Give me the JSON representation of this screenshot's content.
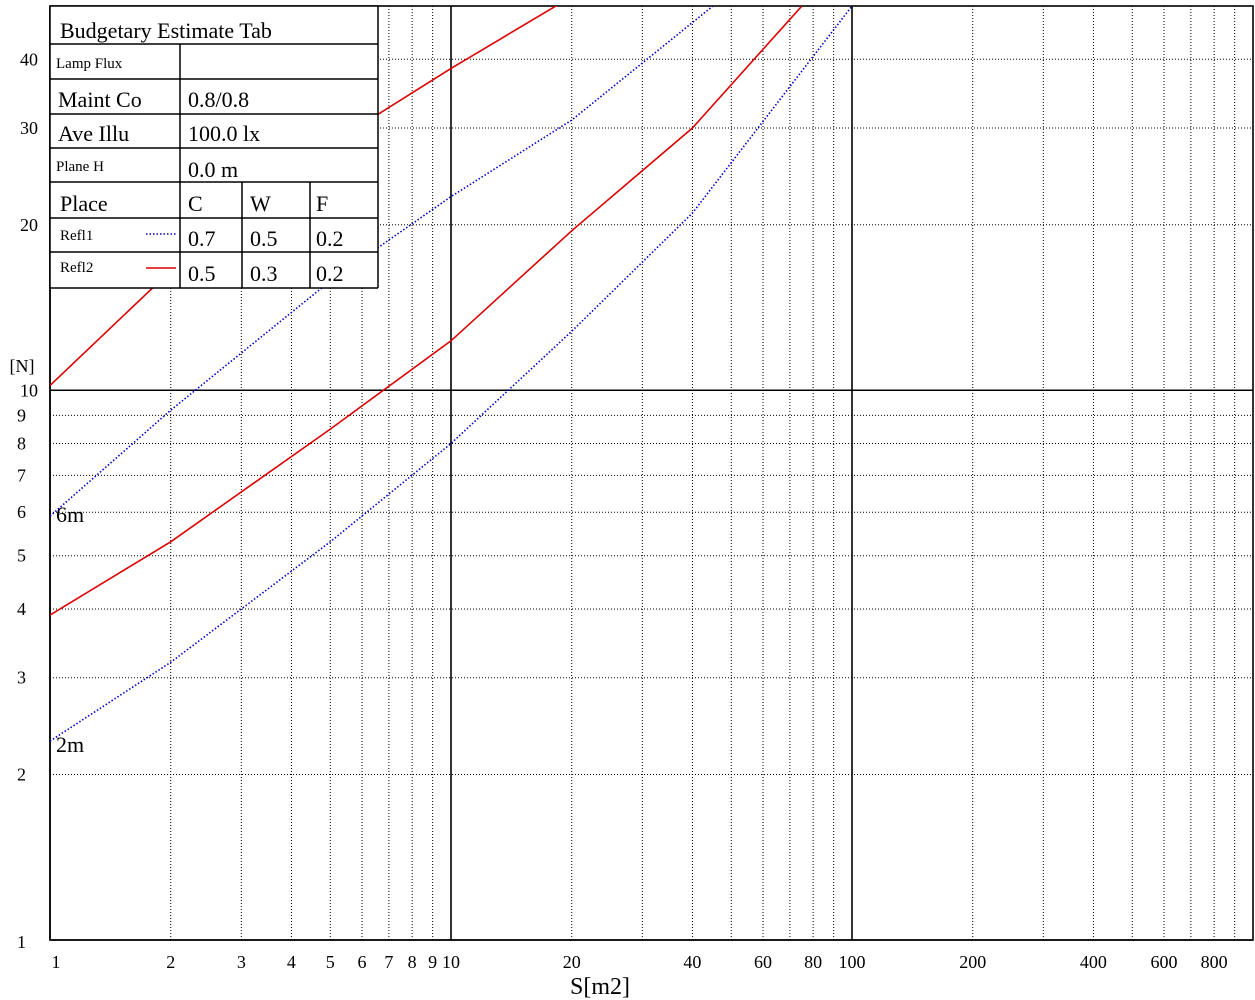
{
  "chart_data": {
    "type": "line",
    "xscale": "log",
    "yscale": "log",
    "xlim": [
      1,
      1000
    ],
    "ylim": [
      1,
      50
    ],
    "xlabel": "S[m2]",
    "ylabel": "[N]",
    "x_ticks": [
      1,
      2,
      3,
      4,
      5,
      6,
      7,
      8,
      9,
      10,
      20,
      40,
      60,
      80,
      100,
      200,
      400,
      600,
      800
    ],
    "y_ticks": [
      1,
      2,
      3,
      4,
      5,
      6,
      7,
      8,
      9,
      10,
      20,
      30,
      40
    ],
    "grid": true,
    "colors": {
      "refl1": "#0000cc",
      "refl2": "#dd0000"
    },
    "series": [
      {
        "style": "refl2",
        "x": [
          1,
          2,
          5,
          10,
          20,
          30
        ],
        "y": [
          10.2,
          16.5,
          28,
          38.5,
          52,
          62
        ]
      },
      {
        "style": "refl1",
        "x": [
          1,
          2,
          5,
          10,
          20,
          45
        ],
        "y": [
          5.9,
          9.2,
          15.8,
          22.5,
          31,
          50
        ]
      },
      {
        "style": "refl2",
        "x": [
          1,
          2,
          5,
          10,
          20,
          40,
          75
        ],
        "y": [
          3.9,
          5.3,
          8.5,
          12.3,
          19.5,
          30,
          50
        ]
      },
      {
        "style": "refl1",
        "x": [
          1,
          2,
          5,
          10,
          20,
          40,
          100
        ],
        "y": [
          2.3,
          3.2,
          5.3,
          8.0,
          12.8,
          21,
          50
        ]
      }
    ],
    "curve_labels": [
      {
        "text": "6m",
        "x": 1.02,
        "y": 5.7
      },
      {
        "text": "2m",
        "x": 1.02,
        "y": 2.15
      }
    ]
  },
  "table": {
    "title": "Budgetary Estimate Tab",
    "lamp_flux_label": "Lamp Flux",
    "lamp_flux_value": "",
    "maint_label": "Maint Co",
    "maint_value": "0.8/0.8",
    "ave_label": "Ave Illu",
    "ave_value": "100.0 lx",
    "plane_label": "Plane H",
    "plane_value": "0.0 m",
    "place_label": "Place",
    "col_c": "C",
    "col_w": "W",
    "col_f": "F",
    "refl1_label": "Refl1",
    "refl1_c": "0.7",
    "refl1_w": "0.5",
    "refl1_f": "0.2",
    "refl2_label": "Refl2",
    "refl2_c": "0.5",
    "refl2_w": "0.3",
    "refl2_f": "0.2"
  }
}
